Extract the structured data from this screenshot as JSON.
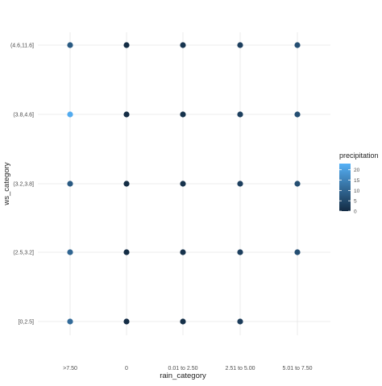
{
  "chart_data": {
    "type": "scatter",
    "xlabel": "rain_category",
    "ylabel": "ws_category",
    "x_categories": [
      ">7.50",
      "0",
      "0.01 to 2.50",
      "2.51 to 5.00",
      "5.01 to 7.50"
    ],
    "y_categories": [
      "[0,2.5]",
      "(2.5,3.2]",
      "(3.2,3.8]",
      "(3.8,4.6]",
      "(4.6,11.6]"
    ],
    "grid": true,
    "legend": {
      "title": "precipitation",
      "position": "right",
      "ticks": [
        0,
        5,
        10,
        15,
        20
      ],
      "range": [
        0,
        23
      ],
      "low_color": "#132B43",
      "high_color": "#56B1F7"
    },
    "points": [
      {
        "x": ">7.50",
        "y": "(4.6,11.6]",
        "precipitation": 8
      },
      {
        "x": "0",
        "y": "(4.6,11.6]",
        "precipitation": 0.3
      },
      {
        "x": "0.01 to 2.50",
        "y": "(4.6,11.6]",
        "precipitation": 1.5
      },
      {
        "x": "2.51 to 5.00",
        "y": "(4.6,11.6]",
        "precipitation": 3.5
      },
      {
        "x": "5.01 to 7.50",
        "y": "(4.6,11.6]",
        "precipitation": 6
      },
      {
        "x": ">7.50",
        "y": "(3.8,4.6]",
        "precipitation": 22
      },
      {
        "x": "0",
        "y": "(3.8,4.6]",
        "precipitation": 0.3
      },
      {
        "x": "0.01 to 2.50",
        "y": "(3.8,4.6]",
        "precipitation": 1.2
      },
      {
        "x": "2.51 to 5.00",
        "y": "(3.8,4.6]",
        "precipitation": 3.5
      },
      {
        "x": "5.01 to 7.50",
        "y": "(3.8,4.6]",
        "precipitation": 6
      },
      {
        "x": ">7.50",
        "y": "(3.2,3.8]",
        "precipitation": 8
      },
      {
        "x": "0",
        "y": "(3.2,3.8]",
        "precipitation": 0.3
      },
      {
        "x": "0.01 to 2.50",
        "y": "(3.2,3.8]",
        "precipitation": 1.2
      },
      {
        "x": "2.51 to 5.00",
        "y": "(3.2,3.8]",
        "precipitation": 3.5
      },
      {
        "x": "5.01 to 7.50",
        "y": "(3.2,3.8]",
        "precipitation": 6
      },
      {
        "x": ">7.50",
        "y": "(2.5,3.2]",
        "precipitation": 10
      },
      {
        "x": "0",
        "y": "(2.5,3.2]",
        "precipitation": 0.3
      },
      {
        "x": "0.01 to 2.50",
        "y": "(2.5,3.2]",
        "precipitation": 1.2
      },
      {
        "x": "2.51 to 5.00",
        "y": "(2.5,3.2]",
        "precipitation": 3.5
      },
      {
        "x": "5.01 to 7.50",
        "y": "(2.5,3.2]",
        "precipitation": 6
      },
      {
        "x": ">7.50",
        "y": "[0,2.5]",
        "precipitation": 11
      },
      {
        "x": "0",
        "y": "[0,2.5]",
        "precipitation": 0.2
      },
      {
        "x": "0.01 to 2.50",
        "y": "[0,2.5]",
        "precipitation": 0.8
      },
      {
        "x": "2.51 to 5.00",
        "y": "[0,2.5]",
        "precipitation": 3
      }
    ]
  }
}
